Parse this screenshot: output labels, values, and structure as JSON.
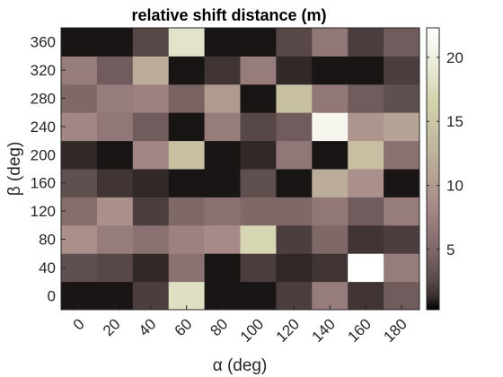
{
  "chart_data": {
    "type": "heatmap",
    "title": "relative shift distance (m)",
    "xlabel": "α (deg)",
    "ylabel": "β (deg)",
    "x": [
      0,
      20,
      40,
      60,
      80,
      100,
      120,
      140,
      160,
      180
    ],
    "y": [
      0,
      40,
      80,
      120,
      160,
      200,
      240,
      280,
      320,
      360
    ],
    "colormap": "pink",
    "clim": [
      0.3,
      22.3
    ],
    "colorbar_ticks": [
      5,
      10,
      15,
      20
    ],
    "values": [
      [
        0.5,
        0.5,
        2.0,
        18.0,
        0.5,
        0.5,
        2.0,
        7.0,
        1.5,
        4.0
      ],
      [
        3.0,
        2.5,
        1.0,
        6.0,
        0.5,
        2.0,
        1.0,
        1.5,
        22.3,
        7.0
      ],
      [
        9.0,
        7.0,
        6.0,
        7.5,
        8.5,
        17.0,
        2.0,
        5.0,
        1.5,
        2.0
      ],
      [
        5.5,
        9.0,
        2.0,
        5.0,
        6.0,
        5.0,
        5.0,
        6.5,
        4.0,
        7.0
      ],
      [
        3.0,
        1.5,
        1.0,
        0.5,
        0.5,
        3.0,
        0.5,
        12.0,
        9.0,
        0.5
      ],
      [
        1.0,
        0.5,
        8.0,
        14.0,
        0.5,
        1.0,
        6.5,
        0.5,
        14.0,
        6.0
      ],
      [
        8.0,
        6.5,
        4.0,
        0.5,
        7.0,
        2.5,
        4.0,
        21.0,
        9.5,
        11.0
      ],
      [
        5.0,
        7.0,
        7.5,
        4.5,
        10.0,
        0.5,
        14.0,
        6.5,
        4.0,
        3.0
      ],
      [
        7.0,
        4.0,
        12.0,
        0.5,
        1.5,
        7.0,
        1.0,
        0.5,
        0.5,
        2.0
      ],
      [
        0.5,
        0.5,
        2.5,
        18.5,
        0.5,
        0.5,
        2.5,
        6.5,
        2.0,
        4.0
      ]
    ]
  }
}
